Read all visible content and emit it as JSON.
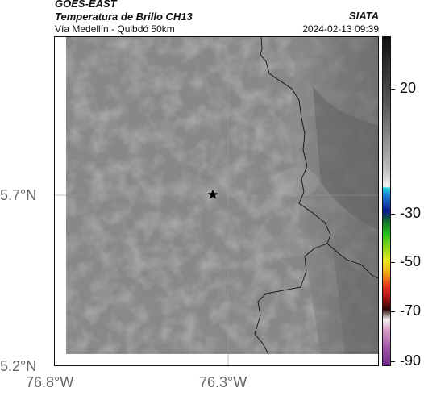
{
  "header": {
    "satellite": "GOES-EAST",
    "product": "Temperatura de Brillo CH13",
    "region": "Vía Medellín - Quibdó 50km",
    "agency": "SIATA",
    "datetime": "2024-02-13 09:39"
  },
  "map": {
    "lat_labels": [
      "5.7°N",
      "5.2°N"
    ],
    "lon_labels": [
      "76.8°W",
      "76.3°W"
    ],
    "marker": "star-icon"
  },
  "colorbar": {
    "labels": [
      "20",
      "-30",
      "-50",
      "-70",
      "-90"
    ]
  }
}
